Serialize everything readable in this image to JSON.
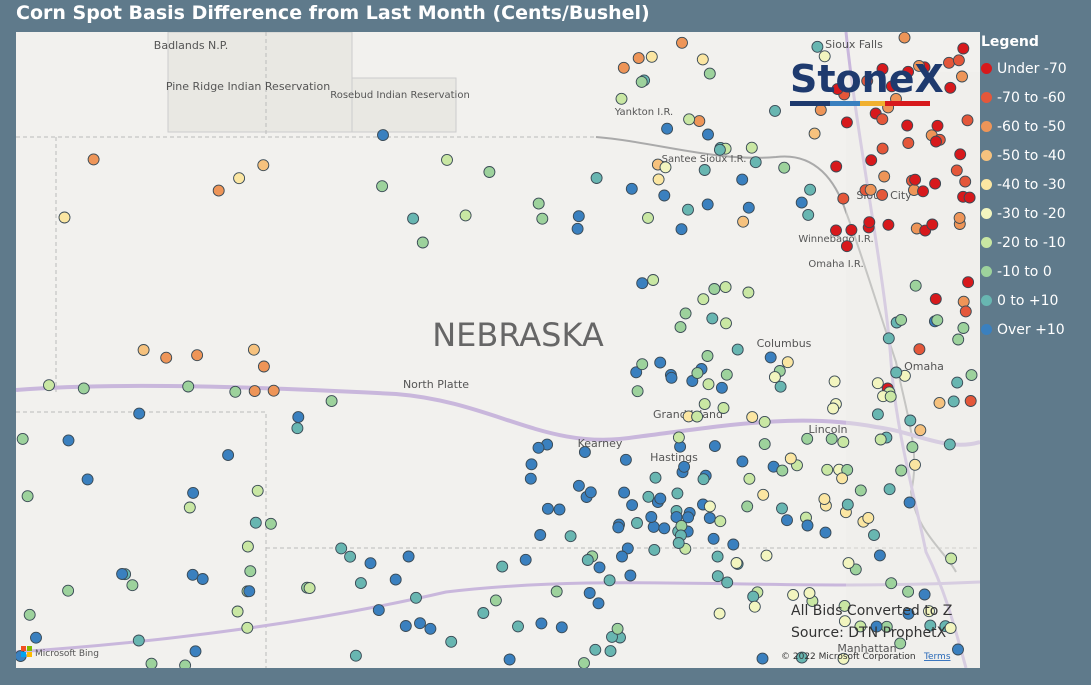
{
  "header": {
    "title": "Corn Spot Basis Difference from Last Month (Cents/Bushel)"
  },
  "legend": {
    "title": "Legend",
    "items": [
      {
        "label": "Under -70",
        "color": "#d7191c"
      },
      {
        "label": "-70 to -60",
        "color": "#e4573a"
      },
      {
        "label": "-60 to -50",
        "color": "#ee9558"
      },
      {
        "label": "-50 to -40",
        "color": "#f6c27e"
      },
      {
        "label": "-40 to -30",
        "color": "#fbe6a2"
      },
      {
        "label": "-30 to -20",
        "color": "#f2f5bf"
      },
      {
        "label": "-20 to -10",
        "color": "#c9e7a3"
      },
      {
        "label": "-10 to 0",
        "color": "#9dd29c"
      },
      {
        "label": "0 to +10",
        "color": "#68b6b1"
      },
      {
        "label": "Over +10",
        "color": "#3a80bf"
      }
    ]
  },
  "map": {
    "labels": [
      "Badlands N.P.",
      "Pine Ridge Indian Reservation",
      "Rosebud Indian Reservation",
      "Yankton I.R.",
      "Santee Sioux I.R.",
      "Sioux City",
      "Winnebago I.R.",
      "Omaha I.R.",
      "NEBRASKA",
      "North Platte",
      "Columbus",
      "Omaha",
      "Grand Island",
      "Kearney",
      "Hastings",
      "Lincoln",
      "Manhattan",
      "Sioux Falls"
    ]
  },
  "logo": "StoneX",
  "notes": [
    "All Bids Converted to Z",
    "Source: DTN ProphetX"
  ],
  "attribution": {
    "bing": "Microsoft Bing",
    "copyright": "© 2022 Microsoft Corporation",
    "terms": "Terms"
  }
}
